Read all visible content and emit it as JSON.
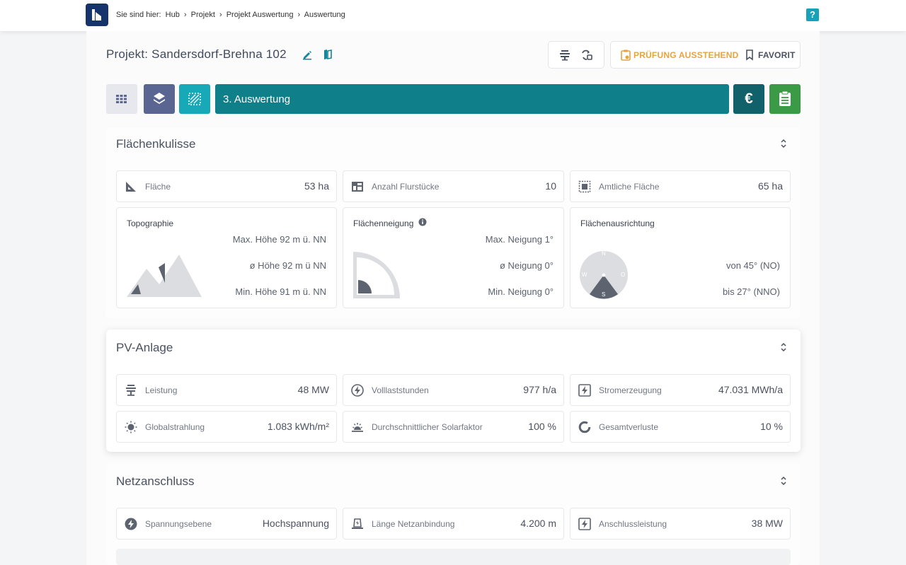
{
  "breadcrumb": {
    "prefix": "Sie sind hier:",
    "items": [
      "Hub",
      "›",
      "Projekt",
      "›",
      "Projekt Auswertung",
      "›",
      "Auswertung"
    ]
  },
  "help": {
    "label": "?"
  },
  "project": {
    "title": "Projekt: Sandersdorf-Brehna 102"
  },
  "status": {
    "pruefung": "PRÜFUNG AUSSTEHEND",
    "favorit": "FAVORIT"
  },
  "step": {
    "label": "3. Auswertung"
  },
  "colors": {
    "teal": "#0f7f8a",
    "cyan": "#17a9b8",
    "slate": "#5a6591",
    "green": "#3a9a46",
    "darkteal": "#106169",
    "orange": "#e8a33d"
  },
  "flaeche": {
    "title": "Flächenkulisse",
    "cards": [
      {
        "label": "Fläche",
        "value": "53 ha",
        "icon": "ruler-triangle-icon"
      },
      {
        "label": "Anzahl Flurstücke",
        "value": "10",
        "icon": "parcels-icon"
      },
      {
        "label": "Amtliche Fläche",
        "value": "65 ha",
        "icon": "area-select-icon"
      }
    ],
    "topo": {
      "title": "Topographie",
      "max": "Max. Höhe 92 m ü. NN",
      "avg": "ø Höhe 92 m ü NN",
      "min": "Min. Höhe 91 m ü. NN"
    },
    "neigung": {
      "title": "Flächenneigung",
      "max": "Max. Neigung 1°",
      "avg": "ø Neigung 0°",
      "min": "Min. Neigung 0°"
    },
    "ausrichtung": {
      "title": "Flächenausrichtung",
      "from": "von 45° (NO)",
      "to": "bis 27° (NNO)",
      "compass": {
        "n": "N",
        "w": "W",
        "o": "O",
        "s": "S"
      }
    }
  },
  "pv": {
    "title": "PV-Anlage",
    "cards": [
      {
        "label": "Leistung",
        "value": "48 MW",
        "icon": "solar-panel-icon"
      },
      {
        "label": "Volllaststunden",
        "value": "977 h/a",
        "icon": "bolt-circle-icon"
      },
      {
        "label": "Stromerzeugung",
        "value": "47.031 MWh/a",
        "icon": "bolt-square-icon"
      },
      {
        "label": "Globalstrahlung",
        "value": "1.083 kWh/m²",
        "icon": "sun-icon"
      },
      {
        "label": "Durchschnittlicher Solarfaktor",
        "value": "100 %",
        "icon": "sunrise-icon"
      },
      {
        "label": "Gesamtverluste",
        "value": "10 %",
        "icon": "loss-ring-icon"
      }
    ]
  },
  "netz": {
    "title": "Netzanschluss",
    "cards": [
      {
        "label": "Spannungsebene",
        "value": "Hochspannung",
        "icon": "bolt-circle-icon"
      },
      {
        "label": "Länge Netzanbindung",
        "value": "4.200 m",
        "icon": "grid-connection-icon"
      },
      {
        "label": "Anschlussleistung",
        "value": "38 MW",
        "icon": "bolt-square-icon"
      }
    ]
  }
}
